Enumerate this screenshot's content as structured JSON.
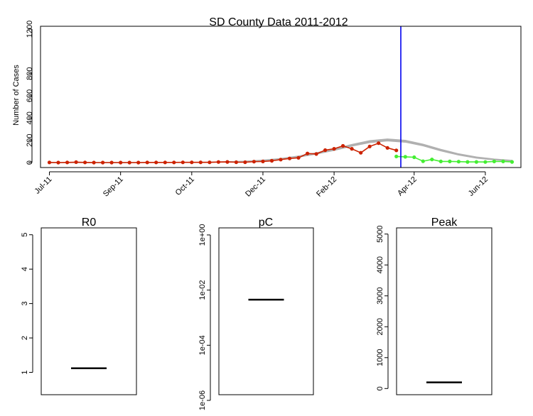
{
  "chart_data": [
    {
      "type": "line",
      "title": "SD County Data 2011-2012",
      "ylabel": "Number of Cases",
      "xlabel": "",
      "ylim": [
        0,
        1200
      ],
      "y_ticks": [
        "0",
        "200",
        "400",
        "600",
        "800",
        "1200"
      ],
      "y_tick_values": [
        0,
        200,
        400,
        600,
        800,
        1200
      ],
      "x_ticks": [
        "Jul-11",
        "Sep-11",
        "Oct-11",
        "Dec-11",
        "Feb-12",
        "Apr-12",
        "Jun-12"
      ],
      "x_tick_weeks": [
        0,
        8,
        16,
        24,
        32,
        41,
        49
      ],
      "x_range_weeks": [
        -1,
        53
      ],
      "vline_week": 39.5,
      "colors": {
        "observed": "#cc2200",
        "forecast": "#44ee33",
        "model": "#b0b0b0",
        "vline": "#0000ee"
      },
      "series": [
        {
          "name": "",
          "x": [
            0,
            1,
            2,
            3,
            4,
            5,
            6,
            7,
            8,
            9,
            10,
            11,
            12,
            13,
            14,
            15,
            16,
            17,
            18,
            19,
            20,
            21,
            22,
            23,
            24,
            25,
            26,
            27,
            28,
            29,
            30,
            31,
            32,
            33,
            34,
            35,
            36,
            37,
            38,
            39
          ],
          "values": [
            1,
            0,
            1,
            4,
            1,
            0,
            0,
            0,
            0,
            0,
            0,
            1,
            1,
            1,
            1,
            2,
            2,
            2,
            2,
            5,
            6,
            3,
            3,
            8,
            10,
            16,
            27,
            37,
            43,
            82,
            77,
            112,
            124,
            150,
            124,
            88,
            145,
            174,
            132,
            110
          ]
        },
        {
          "name": "",
          "x": [
            39,
            40,
            41,
            42,
            43,
            44,
            45,
            46,
            47,
            48,
            49,
            50,
            51,
            52
          ],
          "values": [
            55,
            52,
            48,
            12,
            28,
            10,
            10,
            8,
            6,
            6,
            5,
            10,
            10,
            6
          ]
        }
      ],
      "model_band": {
        "x": [
          0,
          2,
          4,
          6,
          8,
          10,
          12,
          14,
          16,
          18,
          20,
          22,
          24,
          26,
          28,
          30,
          32,
          34,
          36,
          38,
          40,
          42,
          44,
          46,
          48,
          50,
          52
        ],
        "center": [
          0,
          0,
          0,
          0,
          0,
          0,
          1,
          1,
          2,
          3,
          6,
          11,
          20,
          33,
          54,
          82,
          116,
          155,
          188,
          203,
          192,
          158,
          112,
          73,
          45,
          28,
          17
        ],
        "half_width": [
          0,
          0,
          0,
          0,
          0,
          0,
          0,
          0,
          0,
          0,
          1,
          1,
          2,
          3,
          4,
          5,
          6,
          7,
          8,
          8,
          8,
          7,
          6,
          5,
          4,
          3,
          2
        ]
      }
    },
    {
      "type": "boxplot",
      "title": "R0",
      "ylim": [
        0.35,
        5.2
      ],
      "y_ticks": [
        "1",
        "2",
        "3",
        "4",
        "5"
      ],
      "y_tick_values": [
        1,
        2,
        3,
        4,
        5
      ],
      "median": 1.12
    },
    {
      "type": "boxplot",
      "title": "pC",
      "log_scale": true,
      "ylim_log10": [
        -6,
        0.05
      ],
      "y_ticks": [
        "1e-06",
        "1e-04",
        "1e-02",
        "1e+00"
      ],
      "y_tick_values_log10": [
        -6,
        -4,
        -2,
        0
      ],
      "median": 0.0045
    },
    {
      "type": "boxplot",
      "title": "Peak",
      "ylim": [
        -200,
        5200
      ],
      "y_ticks": [
        "0",
        "1000",
        "2000",
        "3000",
        "4000",
        "5000"
      ],
      "y_tick_values": [
        0,
        1000,
        2000,
        3000,
        4000,
        5000
      ],
      "median": 200
    }
  ]
}
